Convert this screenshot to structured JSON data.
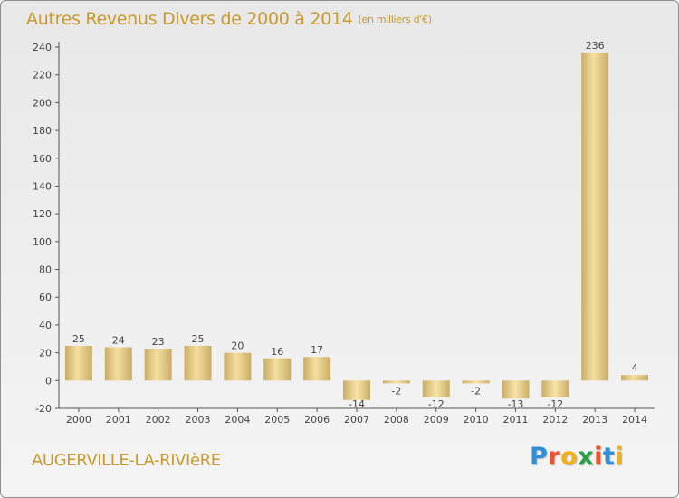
{
  "title": "Autres Revenus Divers de 2000 à 2014",
  "subtitle": "(en milliers d'€)",
  "commune": "AUGERVILLE-LA-RIVIèRE",
  "logo": {
    "letters": [
      "P",
      "r",
      "o",
      "x",
      "i",
      "t",
      "i"
    ],
    "colors": [
      "#2f8fd6",
      "#e8552c",
      "#f2b217",
      "#2a9e46",
      "#e8552c",
      "#2f8fd6",
      "#f2b217"
    ]
  },
  "colors": {
    "bar_fill_light": "#f5dfa0",
    "bar_fill_dark": "#c9ad66",
    "label": "#444444",
    "axis": "#555555",
    "title": "#c89a2c"
  },
  "chart_data": {
    "type": "bar",
    "categories": [
      "2000",
      "2001",
      "2002",
      "2003",
      "2004",
      "2005",
      "2006",
      "2007",
      "2008",
      "2009",
      "2010",
      "2011",
      "2012",
      "2013",
      "2014"
    ],
    "values": [
      25,
      24,
      23,
      25,
      20,
      16,
      17,
      -14,
      -2,
      -12,
      -2,
      -13,
      -12,
      236,
      4
    ],
    "data_labels": [
      "25",
      "24",
      "23",
      "25",
      "20",
      "16",
      "17",
      "-14",
      "-2",
      "-12",
      "-2",
      "-13",
      "-12",
      "236",
      "4"
    ],
    "ylim": [
      -20,
      240
    ],
    "yticks": [
      -20,
      0,
      20,
      40,
      60,
      80,
      100,
      120,
      140,
      160,
      180,
      200,
      220,
      240
    ],
    "ytick_labels": [
      "-20",
      "0",
      "20",
      "40",
      "60",
      "80",
      "100",
      "120",
      "140",
      "160",
      "180",
      "200",
      "220",
      "240"
    ],
    "grid": false,
    "legend": "none"
  }
}
